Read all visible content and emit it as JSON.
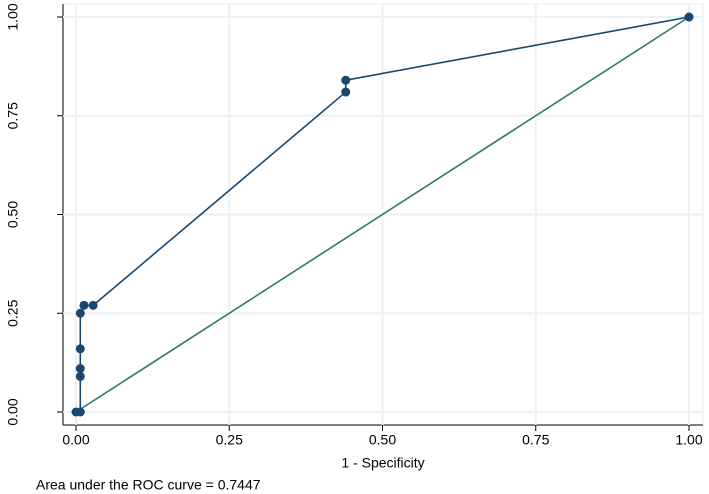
{
  "chart_data": {
    "type": "line",
    "x_label": "1 - Specificity",
    "note": "Area under the ROC curve = 0.7447",
    "xlim": [
      0,
      1
    ],
    "ylim": [
      0,
      1
    ],
    "xticks": [
      {
        "value": 0,
        "label": "0.00"
      },
      {
        "value": 0.25,
        "label": "0.25"
      },
      {
        "value": 0.5,
        "label": "0.50"
      },
      {
        "value": 0.75,
        "label": "0.75"
      },
      {
        "value": 1,
        "label": "1.00"
      }
    ],
    "yticks": [
      {
        "value": 0,
        "label": "0.00"
      },
      {
        "value": 0.25,
        "label": "0.25"
      },
      {
        "value": 0.5,
        "label": "0.50"
      },
      {
        "value": 0.75,
        "label": "0.75"
      },
      {
        "value": 1,
        "label": "1.00"
      }
    ],
    "grid": true,
    "series": [
      {
        "color": "#1a476f",
        "markers": true,
        "x": [
          0,
          0.007,
          0.007,
          0.007,
          0.007,
          0.007,
          0.013,
          0.028,
          0.44,
          0.44,
          1
        ],
        "values": [
          0,
          0,
          0.09,
          0.11,
          0.16,
          0.25,
          0.27,
          0.27,
          0.81,
          0.84,
          1
        ]
      },
      {
        "color": "#2d7a6b",
        "markers": false,
        "x": [
          0,
          1
        ],
        "values": [
          0,
          1
        ]
      }
    ]
  }
}
